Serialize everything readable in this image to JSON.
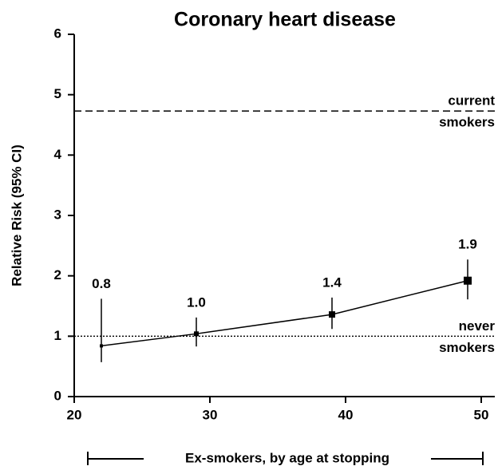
{
  "chart_data": {
    "type": "line",
    "title": "Coronary heart disease",
    "x_label": "Ex-smokers, by age at stopping",
    "y_label": "Relative Risk (95% CI)",
    "x": [
      22,
      29,
      39,
      49
    ],
    "values": [
      0.84,
      1.04,
      1.36,
      1.92
    ],
    "value_labels": [
      "0.8",
      "1.0",
      "1.4",
      "1.9"
    ],
    "lower": [
      0.57,
      0.83,
      1.12,
      1.61
    ],
    "upper": [
      1.62,
      1.31,
      1.64,
      2.27
    ],
    "color": "#000000",
    "xlim": [
      20,
      51
    ],
    "xticks": [
      20,
      30,
      40,
      50
    ],
    "ylim": [
      0,
      6
    ],
    "yticks": [
      0,
      1,
      2,
      3,
      4,
      5,
      6
    ],
    "reference_lines": [
      {
        "value": 4.73,
        "label": [
          "current",
          "smokers"
        ],
        "style": "dashed"
      },
      {
        "value": 1,
        "label": [
          "never",
          "smokers"
        ],
        "style": "dotted"
      }
    ]
  }
}
